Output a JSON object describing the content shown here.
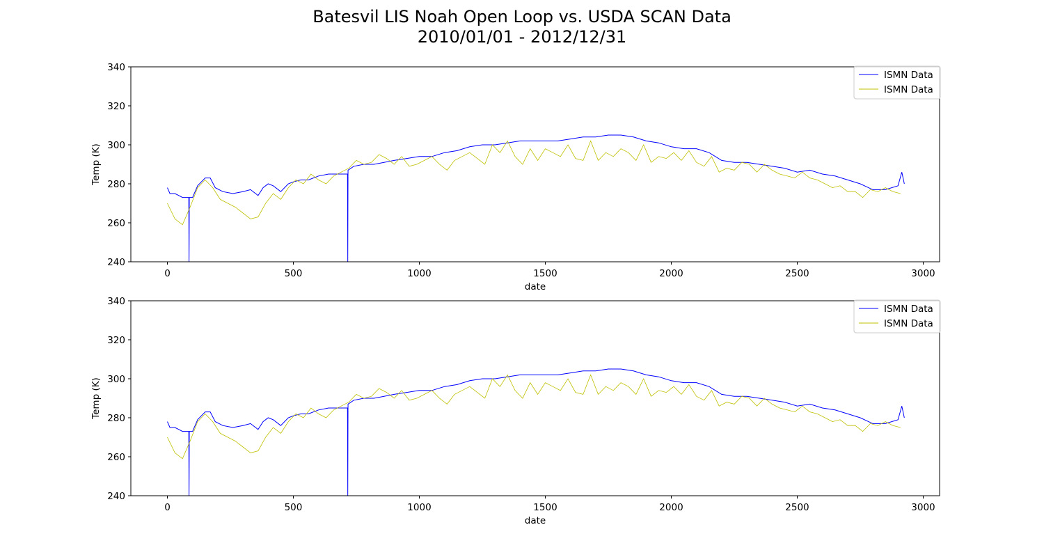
{
  "figure": {
    "title_line1": "Batesvil LIS Noah Open Loop vs. USDA SCAN Data",
    "title_line2": "2010/01/01 - 2012/12/31"
  },
  "colors": {
    "series_blue": "#0000ff",
    "series_yellow": "#bfbf00",
    "axis": "#000000"
  },
  "chart_data": [
    {
      "type": "line",
      "xlabel": "date",
      "ylabel": "Temp (K)",
      "xlim": [
        -145,
        3065
      ],
      "ylim": [
        240,
        340
      ],
      "xticks": [
        0,
        500,
        1000,
        1500,
        2000,
        2500,
        3000
      ],
      "yticks": [
        240,
        260,
        280,
        300,
        320,
        340
      ],
      "grid": false,
      "legend": "top-right",
      "series": [
        {
          "name": "ISMN Data",
          "color": "#0000ff",
          "x": [
            0,
            10,
            30,
            60,
            85,
            86,
            87,
            100,
            120,
            150,
            170,
            190,
            220,
            260,
            300,
            330,
            360,
            380,
            400,
            420,
            450,
            480,
            500,
            530,
            560,
            600,
            640,
            680,
            715,
            716,
            717,
            740,
            780,
            820,
            860,
            900,
            950,
            1000,
            1050,
            1100,
            1150,
            1200,
            1250,
            1300,
            1350,
            1400,
            1450,
            1500,
            1550,
            1600,
            1650,
            1700,
            1750,
            1800,
            1850,
            1900,
            1950,
            2000,
            2050,
            2100,
            2150,
            2200,
            2250,
            2300,
            2350,
            2400,
            2450,
            2500,
            2550,
            2600,
            2650,
            2700,
            2750,
            2800,
            2850,
            2900,
            2915,
            2925
          ],
          "y": [
            278,
            275,
            275,
            273,
            273,
            240,
            273,
            273,
            279,
            283,
            283,
            278,
            276,
            275,
            276,
            277,
            274,
            278,
            280,
            279,
            276,
            280,
            281,
            282,
            282,
            284,
            285,
            285,
            285,
            240,
            287,
            289,
            290,
            290,
            291,
            292,
            293,
            294,
            294,
            296,
            297,
            299,
            300,
            300,
            301,
            302,
            302,
            302,
            302,
            303,
            304,
            304,
            305,
            305,
            304,
            302,
            301,
            299,
            298,
            298,
            296,
            292,
            291,
            291,
            290,
            289,
            288,
            286,
            287,
            285,
            284,
            282,
            280,
            277,
            277,
            279,
            286,
            280
          ]
        },
        {
          "name": "ISMN Data",
          "color": "#bfbf00",
          "x": [
            0,
            30,
            60,
            90,
            120,
            150,
            180,
            210,
            240,
            270,
            300,
            330,
            360,
            390,
            420,
            450,
            480,
            510,
            540,
            570,
            600,
            630,
            660,
            690,
            720,
            750,
            780,
            810,
            840,
            870,
            900,
            930,
            960,
            990,
            1020,
            1050,
            1080,
            1110,
            1140,
            1170,
            1200,
            1230,
            1260,
            1290,
            1320,
            1350,
            1380,
            1410,
            1440,
            1470,
            1500,
            1530,
            1560,
            1590,
            1620,
            1650,
            1680,
            1710,
            1740,
            1770,
            1800,
            1830,
            1860,
            1890,
            1920,
            1950,
            1980,
            2010,
            2040,
            2070,
            2100,
            2130,
            2160,
            2190,
            2220,
            2250,
            2280,
            2310,
            2340,
            2370,
            2400,
            2430,
            2460,
            2490,
            2520,
            2550,
            2580,
            2610,
            2640,
            2670,
            2700,
            2730,
            2760,
            2790,
            2820,
            2850,
            2880,
            2910
          ],
          "y": [
            270,
            262,
            259,
            268,
            278,
            282,
            278,
            272,
            270,
            268,
            265,
            262,
            263,
            270,
            275,
            272,
            278,
            282,
            280,
            285,
            282,
            280,
            284,
            286,
            288,
            292,
            290,
            291,
            295,
            293,
            290,
            294,
            289,
            290,
            292,
            294,
            290,
            287,
            292,
            294,
            296,
            293,
            290,
            300,
            296,
            302,
            294,
            290,
            298,
            292,
            298,
            296,
            294,
            300,
            293,
            292,
            302,
            292,
            296,
            294,
            298,
            296,
            292,
            300,
            291,
            294,
            293,
            296,
            292,
            297,
            291,
            289,
            294,
            286,
            288,
            287,
            291,
            290,
            286,
            290,
            287,
            285,
            284,
            283,
            286,
            283,
            282,
            280,
            278,
            279,
            276,
            276,
            273,
            277,
            276,
            278,
            276,
            275
          ]
        }
      ]
    },
    {
      "type": "line",
      "xlabel": "date",
      "ylabel": "Temp (K)",
      "xlim": [
        -145,
        3065
      ],
      "ylim": [
        240,
        340
      ],
      "xticks": [
        0,
        500,
        1000,
        1500,
        2000,
        2500,
        3000
      ],
      "yticks": [
        240,
        260,
        280,
        300,
        320,
        340
      ],
      "grid": false,
      "legend": "top-right",
      "series": [
        {
          "name": "ISMN Data",
          "color": "#0000ff",
          "x": [
            0,
            10,
            30,
            60,
            85,
            86,
            87,
            100,
            120,
            150,
            170,
            190,
            220,
            260,
            300,
            330,
            360,
            380,
            400,
            420,
            450,
            480,
            500,
            530,
            560,
            600,
            640,
            680,
            715,
            716,
            717,
            740,
            780,
            820,
            860,
            900,
            950,
            1000,
            1050,
            1100,
            1150,
            1200,
            1250,
            1300,
            1350,
            1400,
            1450,
            1500,
            1550,
            1600,
            1650,
            1700,
            1750,
            1800,
            1850,
            1900,
            1950,
            2000,
            2050,
            2100,
            2150,
            2200,
            2250,
            2300,
            2350,
            2400,
            2450,
            2500,
            2550,
            2600,
            2650,
            2700,
            2750,
            2800,
            2850,
            2900,
            2915,
            2925
          ],
          "y": [
            278,
            275,
            275,
            273,
            273,
            240,
            273,
            273,
            279,
            283,
            283,
            278,
            276,
            275,
            276,
            277,
            274,
            278,
            280,
            279,
            276,
            280,
            281,
            282,
            282,
            284,
            285,
            285,
            285,
            240,
            287,
            289,
            290,
            290,
            291,
            292,
            293,
            294,
            294,
            296,
            297,
            299,
            300,
            300,
            301,
            302,
            302,
            302,
            302,
            303,
            304,
            304,
            305,
            305,
            304,
            302,
            301,
            299,
            298,
            298,
            296,
            292,
            291,
            291,
            290,
            289,
            288,
            286,
            287,
            285,
            284,
            282,
            280,
            277,
            277,
            279,
            286,
            280
          ]
        },
        {
          "name": "ISMN Data",
          "color": "#bfbf00",
          "x": [
            0,
            30,
            60,
            90,
            120,
            150,
            180,
            210,
            240,
            270,
            300,
            330,
            360,
            390,
            420,
            450,
            480,
            510,
            540,
            570,
            600,
            630,
            660,
            690,
            720,
            750,
            780,
            810,
            840,
            870,
            900,
            930,
            960,
            990,
            1020,
            1050,
            1080,
            1110,
            1140,
            1170,
            1200,
            1230,
            1260,
            1290,
            1320,
            1350,
            1380,
            1410,
            1440,
            1470,
            1500,
            1530,
            1560,
            1590,
            1620,
            1650,
            1680,
            1710,
            1740,
            1770,
            1800,
            1830,
            1860,
            1890,
            1920,
            1950,
            1980,
            2010,
            2040,
            2070,
            2100,
            2130,
            2160,
            2190,
            2220,
            2250,
            2280,
            2310,
            2340,
            2370,
            2400,
            2430,
            2460,
            2490,
            2520,
            2550,
            2580,
            2610,
            2640,
            2670,
            2700,
            2730,
            2760,
            2790,
            2820,
            2850,
            2880,
            2910
          ],
          "y": [
            270,
            262,
            259,
            268,
            278,
            282,
            278,
            272,
            270,
            268,
            265,
            262,
            263,
            270,
            275,
            272,
            278,
            282,
            280,
            285,
            282,
            280,
            284,
            286,
            288,
            292,
            290,
            291,
            295,
            293,
            290,
            294,
            289,
            290,
            292,
            294,
            290,
            287,
            292,
            294,
            296,
            293,
            290,
            300,
            296,
            302,
            294,
            290,
            298,
            292,
            298,
            296,
            294,
            300,
            293,
            292,
            302,
            292,
            296,
            294,
            298,
            296,
            292,
            300,
            291,
            294,
            293,
            296,
            292,
            297,
            291,
            289,
            294,
            286,
            288,
            287,
            291,
            290,
            286,
            290,
            287,
            285,
            284,
            283,
            286,
            283,
            282,
            280,
            278,
            279,
            276,
            276,
            273,
            277,
            276,
            278,
            276,
            275
          ]
        }
      ]
    }
  ]
}
